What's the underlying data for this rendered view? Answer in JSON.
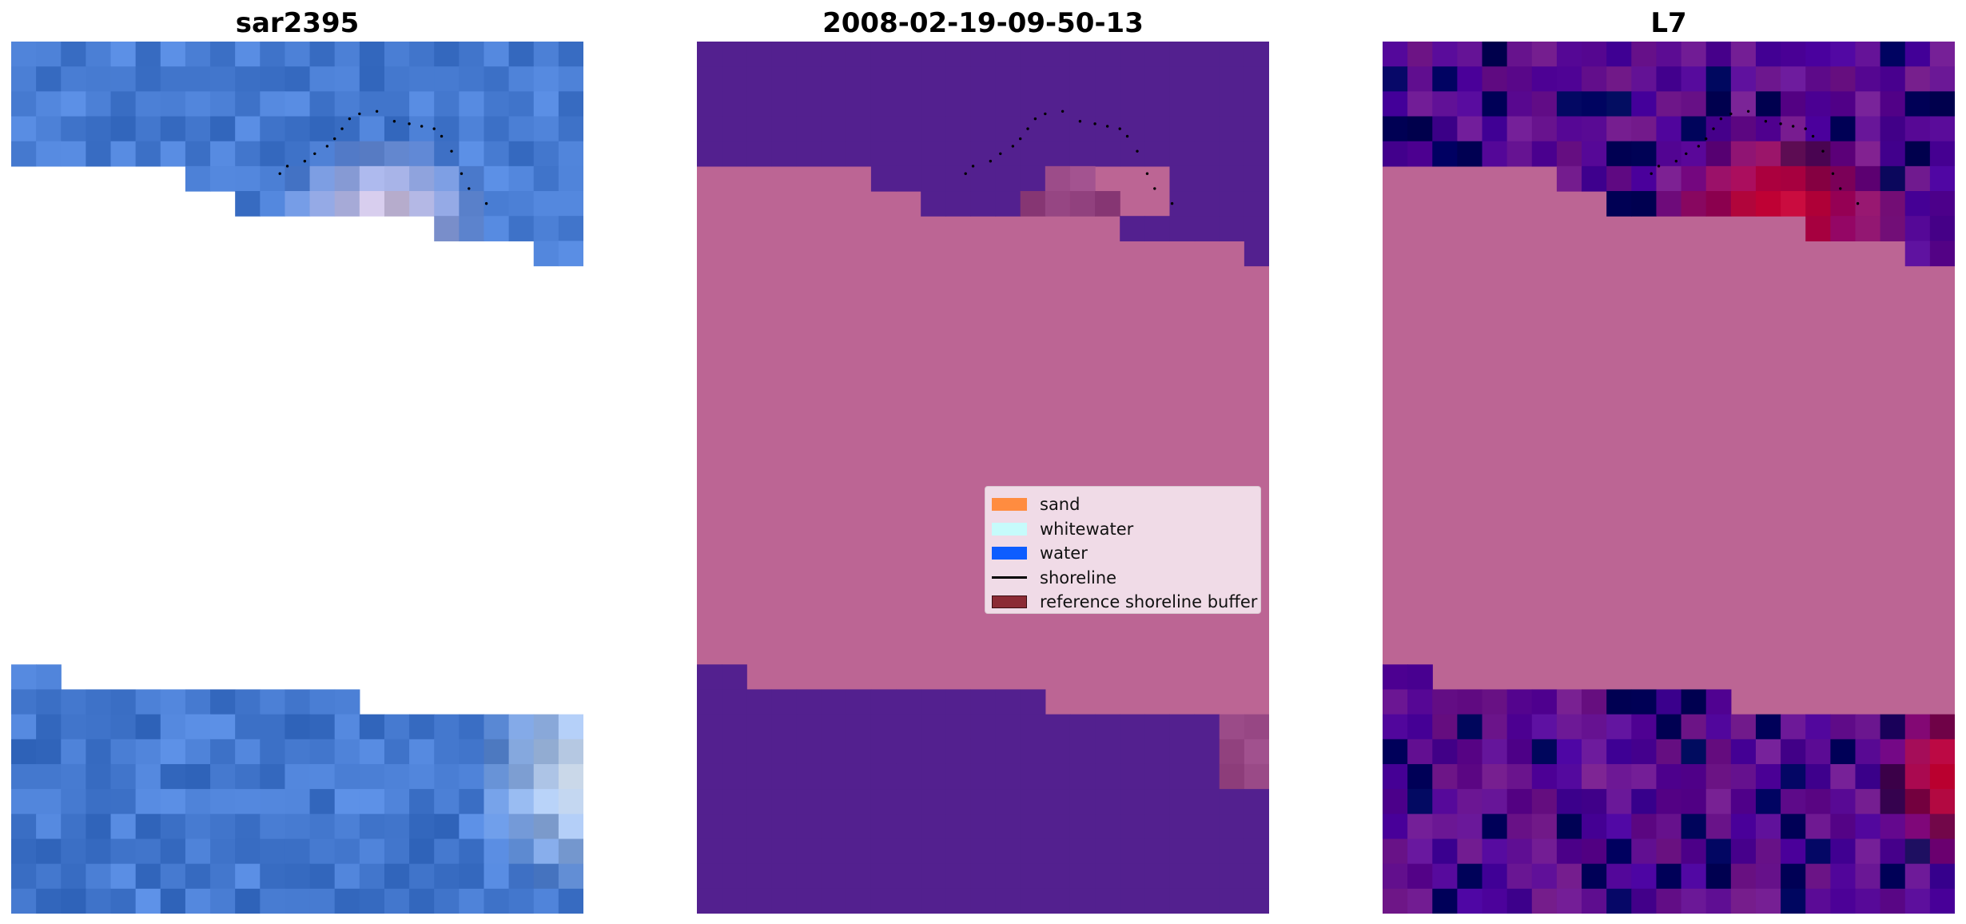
{
  "figure": {
    "panels": [
      {
        "id": "sar",
        "title": "sar2395"
      },
      {
        "id": "classification",
        "title": "2008-02-19-09-50-13"
      },
      {
        "id": "index",
        "title": "L7"
      }
    ]
  },
  "legend": {
    "items": [
      {
        "label": "sand",
        "kind": "patch",
        "color": "#ff8c40"
      },
      {
        "label": "whitewater",
        "kind": "patch",
        "color": "#c6fbfb"
      },
      {
        "label": "water",
        "kind": "patch",
        "color": "#0d5dff"
      },
      {
        "label": "shoreline",
        "kind": "line",
        "color": "#000000"
      },
      {
        "label": "reference shoreline buffer",
        "kind": "patch",
        "color": "#8b2b35"
      }
    ]
  },
  "chart_data": [
    {
      "type": "heatmap",
      "title": "sar2395",
      "description_rows": 35,
      "grid": false,
      "colors": {
        "masked": "#ffffff",
        "water": "#5286dc",
        "bright": "#fde0f0"
      }
    },
    {
      "type": "heatmap",
      "title": "2008-02-19-09-50-13",
      "grid": false,
      "colors": {
        "water": "#53208f",
        "sand": "#bc6594",
        "shallow": "#a2528f"
      },
      "legend_position": "center-right"
    },
    {
      "type": "heatmap",
      "title": "L7",
      "grid": false,
      "colors": {
        "low": "#5a0c9a",
        "mid": "#7d2492",
        "high": "#c80a3d",
        "masked": "#bc6594"
      }
    }
  ]
}
